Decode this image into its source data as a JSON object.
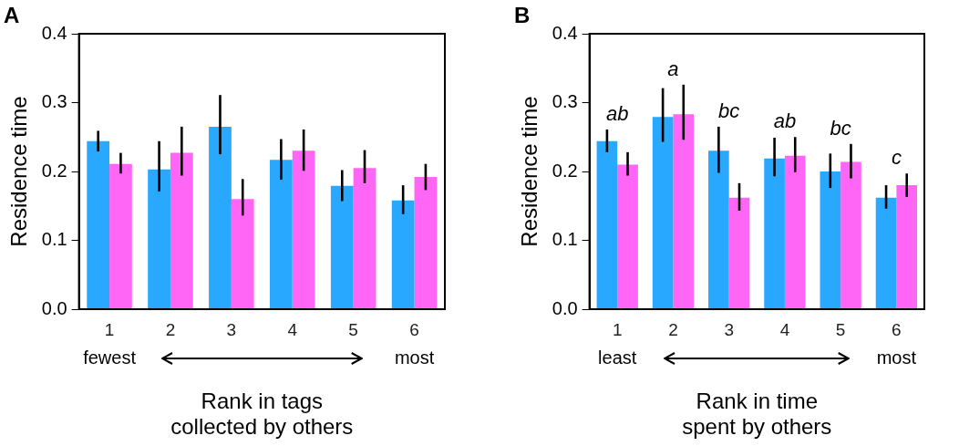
{
  "chart_data": [
    {
      "type": "bar",
      "title": "A",
      "xlabel": "Rank in tags\ncollected by others",
      "ylabel": "Residence time",
      "categories": [
        "1",
        "2",
        "3",
        "4",
        "5",
        "6"
      ],
      "series": [
        {
          "color": "#29a8ff",
          "values": [
            0.244,
            0.203,
            0.265,
            0.217,
            0.179,
            0.158
          ],
          "errors": [
            [
              0.229,
              0.259
            ],
            [
              0.171,
              0.244
            ],
            [
              0.225,
              0.311
            ],
            [
              0.188,
              0.247
            ],
            [
              0.157,
              0.202
            ],
            [
              0.138,
              0.18
            ]
          ]
        },
        {
          "color": "#ff66f5",
          "values": [
            0.211,
            0.227,
            0.16,
            0.23,
            0.205,
            0.192
          ],
          "errors": [
            [
              0.197,
              0.227
            ],
            [
              0.194,
              0.265
            ],
            [
              0.136,
              0.189
            ],
            [
              0.201,
              0.261
            ],
            [
              0.183,
              0.231
            ],
            [
              0.173,
              0.211
            ]
          ]
        }
      ],
      "ylim": [
        0,
        0.4
      ],
      "yticks": [
        {
          "value": 0,
          "label": "0.0"
        },
        0.1,
        0.2,
        0.3,
        0.4
      ],
      "grid": false,
      "legend": false,
      "annotations": [
        "fewest",
        "most"
      ]
    },
    {
      "type": "bar",
      "title": "B",
      "xlabel": "Rank in time\nspent by others",
      "ylabel": "Residence time",
      "categories": [
        "1",
        "2",
        "3",
        "4",
        "5",
        "6"
      ],
      "series": [
        {
          "color": "#29a8ff",
          "values": [
            0.244,
            0.279,
            0.23,
            0.219,
            0.2,
            0.162
          ],
          "errors": [
            [
              0.228,
              0.261
            ],
            [
              0.243,
              0.321
            ],
            [
              0.198,
              0.265
            ],
            [
              0.193,
              0.249
            ],
            [
              0.176,
              0.226
            ],
            [
              0.146,
              0.18
            ]
          ]
        },
        {
          "color": "#ff66f5",
          "values": [
            0.21,
            0.283,
            0.162,
            0.223,
            0.214,
            0.18
          ],
          "errors": [
            [
              0.194,
              0.228
            ],
            [
              0.246,
              0.326
            ],
            [
              0.143,
              0.183
            ],
            [
              0.199,
              0.25
            ],
            [
              0.19,
              0.24
            ],
            [
              0.163,
              0.197
            ]
          ]
        }
      ],
      "ylim": [
        0,
        0.4
      ],
      "yticks": [
        {
          "value": 0,
          "label": "0.0"
        },
        0.1,
        0.2,
        0.3,
        0.4
      ],
      "grid": false,
      "legend": false,
      "annotations": [
        "ab",
        "a",
        "bc",
        "ab",
        "bc",
        "c",
        "least",
        "most"
      ]
    }
  ]
}
